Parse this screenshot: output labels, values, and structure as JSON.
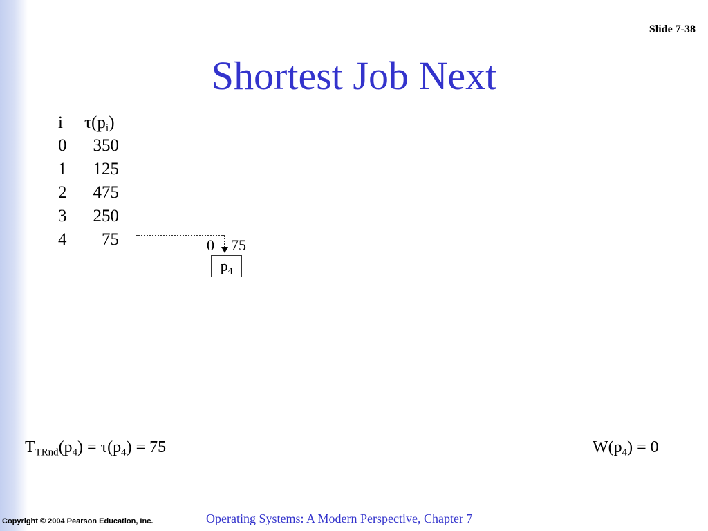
{
  "slide_number": "Slide 7-38",
  "title": "Shortest Job Next",
  "table": {
    "header": {
      "i": "i",
      "tau_prefix": "τ(p",
      "tau_sub": "i",
      "tau_suffix": ")"
    },
    "rows": [
      {
        "i": "0",
        "tau": "350"
      },
      {
        "i": "1",
        "tau": "125"
      },
      {
        "i": "2",
        "tau": "475"
      },
      {
        "i": "3",
        "tau": "250"
      },
      {
        "i": "4",
        "tau": "75"
      }
    ]
  },
  "gantt": {
    "start": "0",
    "end": "75",
    "process": "p",
    "process_sub": "4"
  },
  "formula_left": {
    "t": "T",
    "t_sub": "TRnd",
    "p1": "(p",
    "s1": "4",
    "mid": ") = τ(p",
    "s2": "4",
    "end": ") = 75"
  },
  "formula_right": {
    "w": "W(p",
    "s": "4",
    "end": ") = 0"
  },
  "footer": {
    "copyright": "Copyright © 2004 Pearson Education, Inc.",
    "course": "Operating Systems: A Modern Perspective, Chapter 7"
  },
  "colors": {
    "title": "#3333cc",
    "footer": "#3333cc",
    "sidebar": "#c3cff0"
  }
}
